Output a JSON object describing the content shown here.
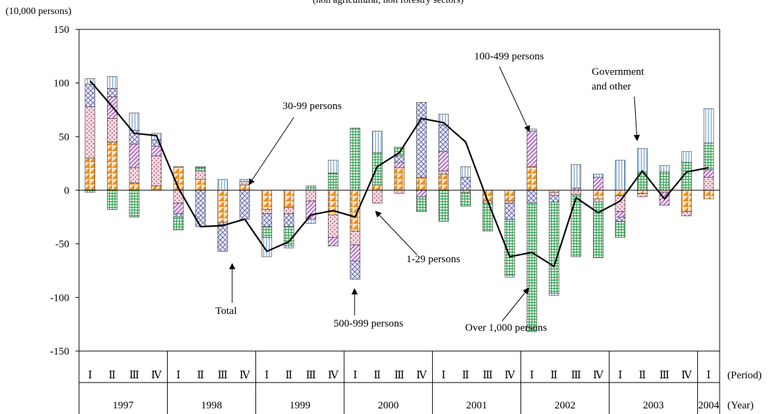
{
  "chart_data": {
    "type": "bar",
    "title": "(non agricultural, non forestry sectors)",
    "unit_label": "(10,000 persons)",
    "ylim": [
      -150,
      150
    ],
    "yticks": [
      150,
      100,
      50,
      0,
      -50,
      -100,
      -150
    ],
    "x_label_period": "(Period)",
    "x_label_year": "(Year)",
    "quarter_labels": [
      "Ⅰ",
      "Ⅱ",
      "Ⅲ",
      "Ⅳ",
      "Ⅰ",
      "Ⅱ",
      "Ⅲ",
      "Ⅳ",
      "Ⅰ",
      "Ⅱ",
      "Ⅲ",
      "Ⅳ",
      "Ⅰ",
      "Ⅱ",
      "Ⅲ",
      "Ⅳ",
      "Ⅰ",
      "Ⅱ",
      "Ⅲ",
      "Ⅳ",
      "Ⅰ",
      "Ⅱ",
      "Ⅲ",
      "Ⅳ",
      "Ⅰ",
      "Ⅱ",
      "Ⅲ",
      "Ⅳ",
      "Ⅰ"
    ],
    "years": [
      "1997",
      "1998",
      "1999",
      "2000",
      "2001",
      "2002",
      "2003",
      "2004"
    ],
    "series": [
      {
        "name": "1-29 persons",
        "color": "#e8902a",
        "values": [
          30,
          45,
          7,
          4,
          22,
          10,
          -30,
          5,
          -18,
          -16,
          0,
          -23,
          -38,
          5,
          21,
          12,
          15,
          -2,
          -10,
          -10,
          22,
          -2,
          0,
          -8,
          -5,
          -3,
          0,
          -20,
          -8
        ]
      },
      {
        "name": "30-99 persons",
        "color": "#d06080",
        "values": [
          48,
          22,
          14,
          28,
          -12,
          8,
          -2,
          3,
          -4,
          -6,
          -10,
          -21,
          -13,
          -12,
          -3,
          0,
          3,
          0,
          -2,
          -2,
          0,
          -3,
          -4,
          -3,
          -15,
          -3,
          -2,
          -4,
          12
        ]
      },
      {
        "name": "100-499 persons",
        "color": "#a050b0",
        "values": [
          0,
          20,
          22,
          9,
          -10,
          0,
          0,
          0,
          0,
          0,
          -17,
          -8,
          -15,
          0,
          5,
          -6,
          18,
          0,
          0,
          0,
          33,
          0,
          2,
          12,
          -5,
          0,
          -12,
          0,
          7
        ]
      },
      {
        "name": "500-999 persons",
        "color": "#6a6ab0",
        "values": [
          21,
          8,
          13,
          6,
          -3,
          -34,
          -25,
          -27,
          -12,
          -12,
          0,
          0,
          -17,
          0,
          6,
          70,
          25,
          12,
          0,
          -15,
          -12,
          -6,
          0,
          0,
          -4,
          0,
          0,
          0,
          0
        ]
      },
      {
        "name": "Over 1,000 persons",
        "color": "#2a9a4a",
        "values": [
          -2,
          -18,
          -25,
          0,
          -12,
          3,
          0,
          0,
          -10,
          -18,
          4,
          16,
          58,
          30,
          8,
          -14,
          -29,
          -13,
          -26,
          -52,
          -120,
          -85,
          -58,
          -52,
          -15,
          17,
          17,
          26,
          25
        ]
      },
      {
        "name": "Government and other",
        "color": "#5a9ad0",
        "values": [
          5,
          11,
          16,
          6,
          0,
          1,
          10,
          2,
          -18,
          -2,
          -4,
          12,
          0,
          20,
          0,
          0,
          10,
          10,
          0,
          -2,
          2,
          -2,
          22,
          3,
          28,
          22,
          6,
          10,
          32
        ]
      }
    ],
    "total": {
      "name": "Total",
      "values": [
        102,
        78,
        53,
        51,
        2,
        -34,
        -33,
        -27,
        -57,
        -48,
        -23,
        -19,
        -25,
        22,
        35,
        67,
        63,
        45,
        -10,
        -62,
        -58,
        -71,
        -7,
        -21,
        -10,
        18,
        -8,
        17,
        21
      ]
    },
    "annotations": [
      {
        "text": "30-99 persons",
        "points_to_quarter": 7
      },
      {
        "text": "100-499 persons",
        "points_to_quarter": 20
      },
      {
        "text": "Government",
        "text2": "and  other",
        "points_to_quarter": 24
      },
      {
        "text": "1-29 persons",
        "points_to_quarter": 13
      },
      {
        "text": "500-999 persons",
        "points_to_quarter": 12
      },
      {
        "text": "Over 1,000 persons",
        "points_to_quarter": 20
      },
      {
        "text": "Total",
        "points_to_quarter": 6
      }
    ]
  }
}
